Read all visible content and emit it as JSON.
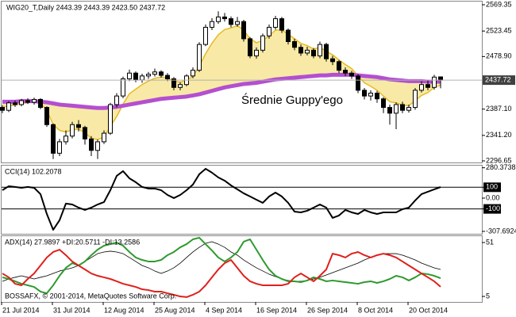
{
  "chart_data": [
    {
      "type": "candlestick",
      "title": "WIG20_T,Daily  2443.39 2443.39 2423.50 2437.72",
      "annotation": "Średnie Guppy'ego",
      "categories": [
        "21 Jul 2014",
        null,
        null,
        null,
        null,
        null,
        null,
        null,
        "31 Jul 2014",
        null,
        null,
        null,
        null,
        null,
        null,
        null,
        "12 Aug 2014",
        null,
        null,
        null,
        null,
        null,
        null,
        null,
        "25 Aug 2014",
        null,
        null,
        null,
        null,
        null,
        null,
        null,
        "4 Sep 2014",
        null,
        null,
        null,
        null,
        null,
        null,
        null,
        "16 Sep 2014",
        null,
        null,
        null,
        null,
        null,
        null,
        null,
        "26 Sep 2014",
        null,
        null,
        null,
        null,
        null,
        null,
        null,
        "8 Oct 2014",
        null,
        null,
        null,
        null,
        null,
        null,
        null,
        "20 Oct 2014",
        null,
        null,
        null,
        null,
        null
      ],
      "open": [
        2390,
        2385,
        2398,
        2395,
        2402,
        2399,
        2404,
        2390,
        2360,
        2310,
        2330,
        2340,
        2360,
        2355,
        2335,
        2315,
        2330,
        2345,
        2395,
        2410,
        2440,
        2450,
        2438,
        2445,
        2448,
        2452,
        2446,
        2440,
        2425,
        2430,
        2445,
        2455,
        2500,
        2530,
        2540,
        2548,
        2545,
        2535,
        2540,
        2510,
        2480,
        2490,
        2515,
        2530,
        2545,
        2525,
        2505,
        2495,
        2485,
        2490,
        2480,
        2500,
        2475,
        2470,
        2455,
        2450,
        2445,
        2420,
        2410,
        2415,
        2405,
        2390,
        2380,
        2395,
        2385,
        2390,
        2420,
        2430,
        2425,
        2443.39
      ],
      "high": [
        2394,
        2401,
        2402,
        2405,
        2406,
        2407,
        2406,
        2392,
        2362,
        2335,
        2350,
        2365,
        2368,
        2358,
        2340,
        2334,
        2350,
        2398,
        2415,
        2444,
        2456,
        2453,
        2449,
        2452,
        2458,
        2455,
        2450,
        2443,
        2434,
        2448,
        2460,
        2504,
        2535,
        2546,
        2558,
        2555,
        2549,
        2548,
        2543,
        2513,
        2495,
        2519,
        2535,
        2550,
        2548,
        2528,
        2510,
        2500,
        2496,
        2494,
        2505,
        2503,
        2480,
        2473,
        2460,
        2454,
        2448,
        2424,
        2420,
        2419,
        2408,
        2395,
        2399,
        2400,
        2395,
        2424,
        2436,
        2438,
        2447,
        2443.39
      ],
      "low": [
        2380,
        2382,
        2391,
        2392,
        2396,
        2395,
        2387,
        2356,
        2300,
        2305,
        2325,
        2336,
        2348,
        2325,
        2305,
        2300,
        2326,
        2342,
        2390,
        2406,
        2436,
        2434,
        2433,
        2440,
        2444,
        2442,
        2436,
        2420,
        2420,
        2427,
        2441,
        2452,
        2497,
        2525,
        2536,
        2540,
        2530,
        2531,
        2505,
        2476,
        2475,
        2486,
        2510,
        2526,
        2520,
        2500,
        2490,
        2480,
        2481,
        2476,
        2476,
        2470,
        2464,
        2450,
        2445,
        2440,
        2415,
        2404,
        2402,
        2398,
        2380,
        2360,
        2352,
        2380,
        2381,
        2386,
        2416,
        2420,
        2421,
        2423.5
      ],
      "close": [
        2385,
        2398,
        2395,
        2402,
        2399,
        2404,
        2390,
        2360,
        2310,
        2330,
        2340,
        2360,
        2355,
        2335,
        2315,
        2330,
        2345,
        2395,
        2410,
        2440,
        2450,
        2438,
        2445,
        2448,
        2452,
        2446,
        2440,
        2425,
        2430,
        2445,
        2455,
        2500,
        2530,
        2540,
        2548,
        2545,
        2535,
        2540,
        2510,
        2480,
        2490,
        2515,
        2530,
        2545,
        2525,
        2505,
        2495,
        2485,
        2490,
        2480,
        2500,
        2475,
        2470,
        2455,
        2450,
        2445,
        2420,
        2410,
        2415,
        2405,
        2390,
        2380,
        2395,
        2385,
        2390,
        2420,
        2430,
        2425,
        2443,
        2437.72
      ],
      "up_color": "#ffffff",
      "down_color": "#000000",
      "series": [
        {
          "color": "#e8b923",
          "values": [
            2390,
            2393,
            2394,
            2397,
            2398,
            2400,
            2397,
            2385,
            2360,
            2350,
            2347,
            2351,
            2352,
            2346,
            2336,
            2334,
            2338,
            2357,
            2374,
            2396,
            2414,
            2422,
            2430,
            2436,
            2441,
            2443,
            2442,
            2436,
            2434,
            2438,
            2444,
            2462,
            2484,
            2502,
            2517,
            2526,
            2529,
            2533,
            2525,
            2510,
            2503,
            2507,
            2515,
            2525,
            2525,
            2518,
            2510,
            2502,
            2498,
            2492,
            2495,
            2488,
            2482,
            2473,
            2465,
            2458,
            2445,
            2433,
            2427,
            2420,
            2410,
            2400,
            2398,
            2394,
            2393,
            2402,
            2411,
            2416,
            2425,
            2429
          ]
        },
        {
          "color": "#b44fd0",
          "values": [
            2400,
            2400,
            2400,
            2401,
            2401,
            2401,
            2400,
            2399,
            2397,
            2395,
            2394,
            2393,
            2392,
            2391,
            2390,
            2389,
            2389,
            2390,
            2391,
            2393,
            2395,
            2397,
            2399,
            2401,
            2403,
            2405,
            2406,
            2407,
            2408,
            2409,
            2411,
            2413,
            2416,
            2419,
            2422,
            2425,
            2427,
            2429,
            2431,
            2432,
            2433,
            2435,
            2437,
            2439,
            2440,
            2441,
            2442,
            2443,
            2444,
            2445,
            2446,
            2446,
            2447,
            2447,
            2447,
            2447,
            2446,
            2445,
            2444,
            2443,
            2441,
            2439,
            2438,
            2437,
            2436,
            2436,
            2436,
            2435,
            2435,
            2435
          ]
        }
      ],
      "band_color": "#f3dc6a",
      "last_price": 2437.72,
      "ylim": [
        2293.9,
        2574.9
      ],
      "yticks": [
        2569.35,
        2523.45,
        {
          "value": 2478.9,
          "label": "2478.90"
        },
        {
          "value": 2387.1,
          "label": "2387.10"
        },
        {
          "value": 2341.2,
          "label": "2341.20"
        },
        2296.65
      ]
    },
    {
      "type": "line",
      "title": "CCI(14) 102.2078",
      "series": [
        {
          "color": "#000000",
          "values": [
            73,
            110,
            103,
            95,
            103,
            95,
            37,
            -147,
            -293,
            -205,
            -51,
            -59,
            -88,
            -110,
            -88,
            -59,
            -37,
            73,
            205,
            249,
            183,
            147,
            103,
            88,
            88,
            73,
            29,
            0,
            29,
            73,
            125,
            220,
            271,
            235,
            191,
            161,
            117,
            81,
            44,
            15,
            -15,
            -44,
            15,
            51,
            15,
            -44,
            -125,
            -132,
            -117,
            -88,
            -59,
            -88,
            -183,
            -161,
            -110,
            -132,
            -147,
            -110,
            -132,
            -147,
            -132,
            -132,
            -132,
            -103,
            -88,
            -22,
            37,
            59,
            81,
            102.2078
          ]
        }
      ],
      "levels": [
        100,
        -100
      ],
      "ylim": [
        -330,
        300
      ],
      "yticks": [
        280.3738,
        100,
        {
          "value": 0,
          "label": "0.00"
        },
        -100,
        -307.6924
      ]
    },
    {
      "type": "line",
      "title": "ADX(14) 27.9897 +DI:20.5711 -DI:13.2586",
      "footer": "BOSSAFX, © 2001-2014, MetaQuotes Software Corp.",
      "series": [
        {
          "color": "#000000",
          "values": [
            17.9,
            19.9,
            21.3,
            22.6,
            21.3,
            19.9,
            21.3,
            22.6,
            24.6,
            26.7,
            28.0,
            29.4,
            31.4,
            34.8,
            38.2,
            41.5,
            42.9,
            43.6,
            42.9,
            41.5,
            38.2,
            34.8,
            31.4,
            29.4,
            26.7,
            24.6,
            26.7,
            29.4,
            33.4,
            38.2,
            42.9,
            46.9,
            50.3,
            51.7,
            49.6,
            46.9,
            42.9,
            40.2,
            36.1,
            32.7,
            29.4,
            26.7,
            24.0,
            21.9,
            19.9,
            18.6,
            17.9,
            17.9,
            18.6,
            19.9,
            21.3,
            23.3,
            25.3,
            27.3,
            29.4,
            31.4,
            33.4,
            36.1,
            38.2,
            40.2,
            41.5,
            41.5,
            41.5,
            40.2,
            38.2,
            36.1,
            33.4,
            31.4,
            29.4,
            27.9897
          ]
        },
        {
          "color": "#2f9a2f",
          "values": [
            21.3,
            19.9,
            17.9,
            15.8,
            14.5,
            13.1,
            9.1,
            7.7,
            14.5,
            22.6,
            29.4,
            33.4,
            31.4,
            34.8,
            40.2,
            44.9,
            48.3,
            49.6,
            51.0,
            48.3,
            42.9,
            38.2,
            36.1,
            34.8,
            34.8,
            36.1,
            40.2,
            42.9,
            46.9,
            49.6,
            53.7,
            55.1,
            49.6,
            44.2,
            38.2,
            34.8,
            38.2,
            42.9,
            51.7,
            53.7,
            44.9,
            36.1,
            28.0,
            22.6,
            19.9,
            17.9,
            17.9,
            17.2,
            18.6,
            21.3,
            19.9,
            17.9,
            18.6,
            17.9,
            17.2,
            16.5,
            15.8,
            17.2,
            17.9,
            16.5,
            17.9,
            19.9,
            22.6,
            21.3,
            18.6,
            21.3,
            24.6,
            24.0,
            22.6,
            20.5711
          ]
        },
        {
          "color": "#e0201c",
          "values": [
            24.6,
            21.3,
            15.8,
            14.5,
            19.9,
            24.6,
            31.4,
            38.2,
            42.9,
            44.9,
            40.2,
            34.8,
            31.4,
            28.0,
            24.6,
            22.6,
            21.3,
            19.9,
            17.9,
            15.8,
            14.5,
            13.1,
            11.1,
            10.4,
            9.1,
            9.1,
            7.7,
            6.4,
            5.0,
            4.4,
            6.4,
            9.1,
            14.5,
            21.3,
            28.0,
            33.4,
            36.1,
            29.4,
            22.6,
            17.9,
            15.8,
            14.5,
            14.5,
            14.5,
            14.5,
            15.8,
            21.3,
            24.6,
            21.3,
            17.9,
            22.6,
            28.0,
            41.5,
            40.2,
            38.2,
            41.5,
            42.9,
            40.2,
            38.2,
            40.2,
            41.5,
            40.2,
            38.2,
            34.8,
            31.4,
            28.0,
            24.6,
            21.3,
            17.9,
            13.2586
          ]
        }
      ],
      "ylim": [
        0.3,
        56.4
      ],
      "yticks": [
        51,
        5
      ]
    }
  ]
}
